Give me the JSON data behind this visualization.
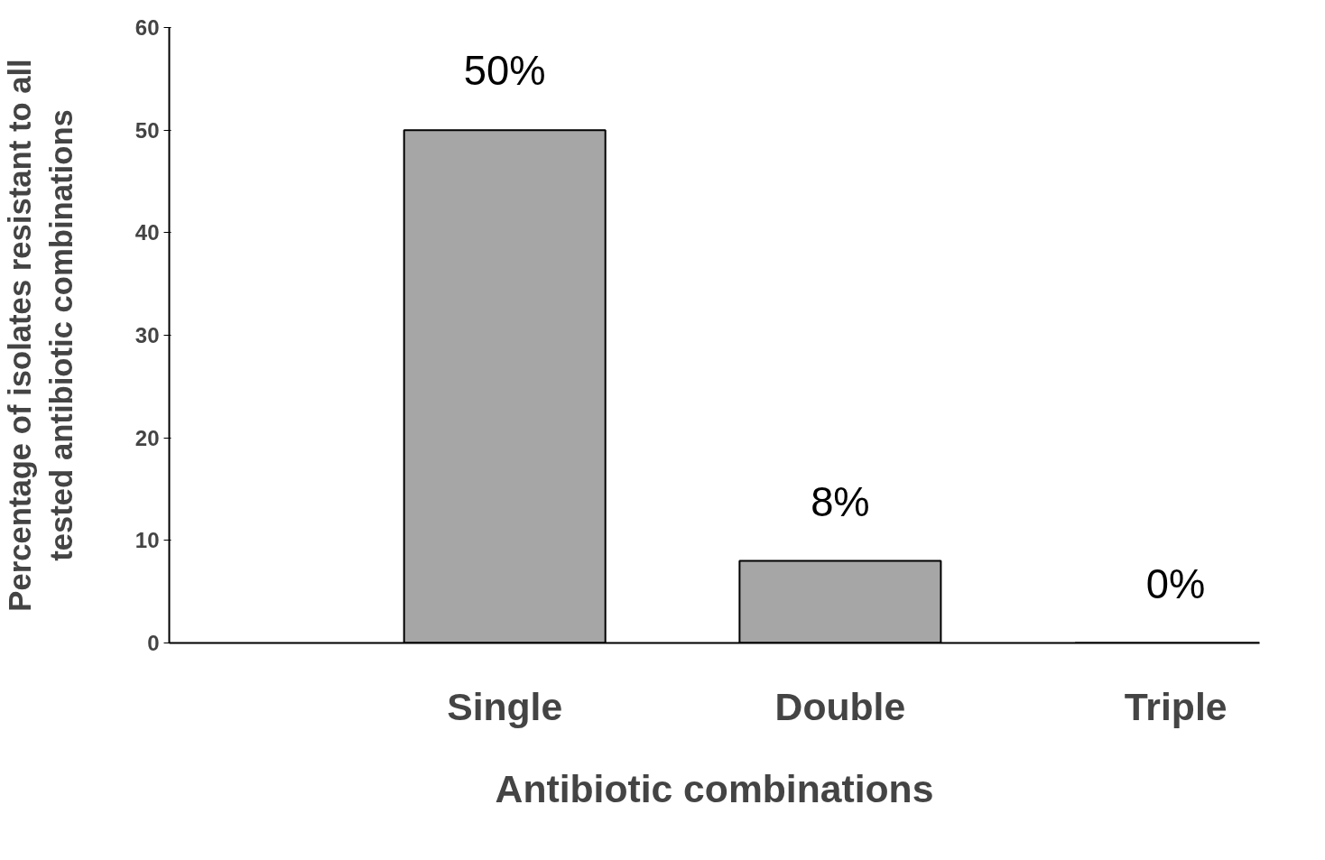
{
  "chart_data": {
    "type": "bar",
    "xlabel": "Antibiotic combinations",
    "ylabel": "Percentage of isolates resistant to all\ntested antibiotic combinations",
    "categories": [
      "Single",
      "Double",
      "Triple"
    ],
    "values": [
      50,
      8,
      0
    ],
    "color": "#a6a6a6",
    "value_labels": [
      "50%",
      "8%",
      "0%"
    ],
    "ylim": [
      0,
      60
    ],
    "yticks": [
      0,
      10,
      20,
      30,
      40,
      50,
      60
    ],
    "grid": false
  }
}
